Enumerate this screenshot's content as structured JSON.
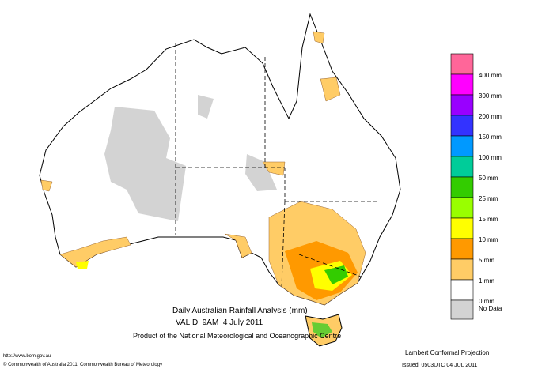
{
  "map": {
    "title": "Daily Australian Rainfall Analysis (mm)",
    "valid": "VALID: 9AM  4 July 2011",
    "product": "Product of the National Meteorological and Oceanographic Centre",
    "url": "http://www.bom.gov.au",
    "copyright": "© Commonwealth of Australia 2011, Commonwealth Bureau of Meteorology",
    "projection": "Lambert Conformal Projection",
    "issued": "Issued: 0503UTC 04 JUL 2011",
    "legend": [
      "400 mm",
      "300 mm",
      "200 mm",
      "150 mm",
      "100 mm",
      "50 mm",
      "25 mm",
      "15 mm",
      "10 mm",
      "5 mm",
      "1 mm",
      "0 mm",
      "No Data"
    ]
  }
}
